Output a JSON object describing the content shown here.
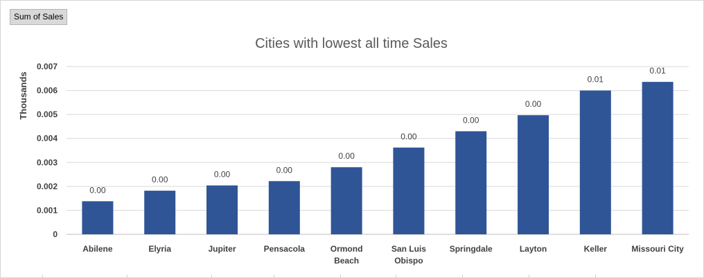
{
  "pivot": {
    "field_button_label": "Sum of Sales"
  },
  "chart_data": {
    "type": "bar",
    "title": "Cities with lowest all time Sales",
    "ylabel": "Thousands",
    "xlabel": "",
    "ylim": [
      0,
      0.007
    ],
    "yticks": [
      "0",
      "0.001",
      "0.002",
      "0.003",
      "0.004",
      "0.005",
      "0.006",
      "0.007"
    ],
    "ytick_values": [
      0,
      0.001,
      0.002,
      0.003,
      0.004,
      0.005,
      0.006,
      0.007
    ],
    "categories": [
      [
        "Abilene"
      ],
      [
        "Elyria"
      ],
      [
        "Jupiter"
      ],
      [
        "Pensacola"
      ],
      [
        "Ormond",
        "Beach"
      ],
      [
        "San Luis",
        "Obispo"
      ],
      [
        "Springdale"
      ],
      [
        "Layton"
      ],
      [
        "Keller"
      ],
      [
        "Missouri City"
      ]
    ],
    "values": [
      0.00138,
      0.00182,
      0.00204,
      0.00222,
      0.0028,
      0.00362,
      0.0043,
      0.00497,
      0.006,
      0.00636
    ],
    "data_labels": [
      "0.00",
      "0.00",
      "0.00",
      "0.00",
      "0.00",
      "0.00",
      "0.00",
      "0.00",
      "0.01",
      "0.01"
    ],
    "grid": true,
    "legend": "none",
    "bar_color": "#2f5597"
  }
}
